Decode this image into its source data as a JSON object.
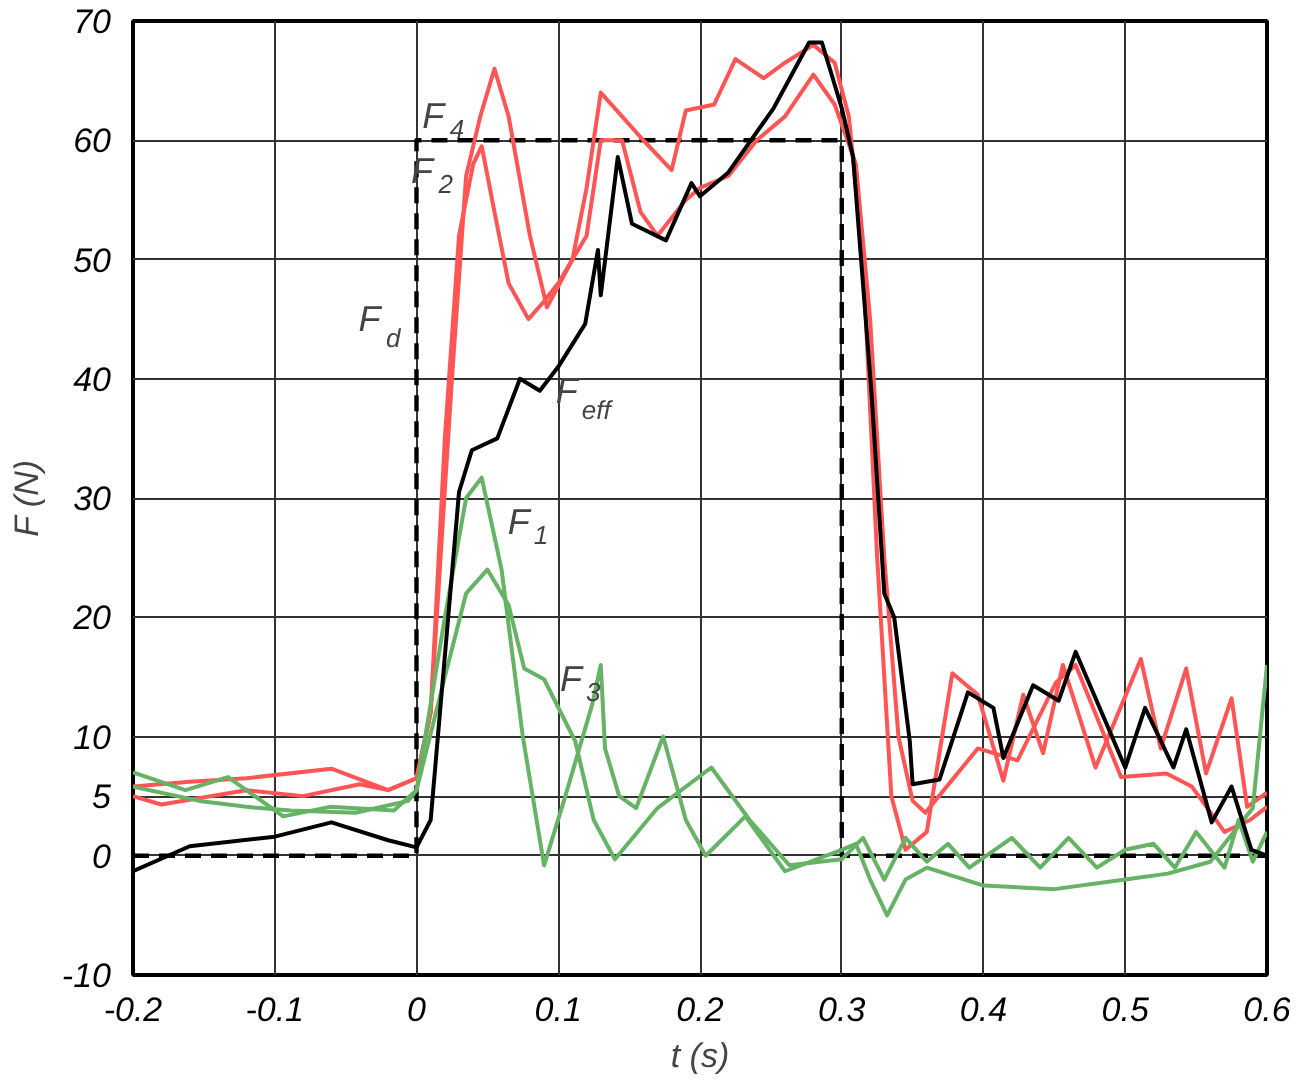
{
  "chart_data": {
    "type": "line",
    "xlabel": "t (s)",
    "ylabel": "F (N)",
    "xlim": [
      -0.2,
      0.6
    ],
    "ylim": [
      -10,
      70
    ],
    "xticks": [
      -0.2,
      -0.1,
      0,
      0.1,
      0.2,
      0.3,
      0.4,
      0.5,
      0.6
    ],
    "yticks": [
      -10,
      0,
      5,
      10,
      20,
      30,
      40,
      50,
      60,
      70
    ],
    "grid": true,
    "marker": "none",
    "series": [
      {
        "color": "#000000",
        "line_style": "dashed",
        "x": [
          -0.2,
          0,
          0,
          0.3,
          0.3,
          0.6
        ],
        "values": [
          0,
          0,
          60,
          60,
          0,
          0
        ]
      },
      {
        "color": "#ff5555",
        "x": [
          -0.2,
          -0.16,
          -0.12,
          -0.06,
          -0.02,
          0,
          0.01,
          0.025,
          0.035,
          0.045,
          0.055,
          0.065,
          0.08,
          0.092,
          0.11,
          0.12,
          0.13,
          0.145,
          0.16,
          0.18,
          0.19,
          0.21,
          0.225,
          0.245,
          0.26,
          0.28,
          0.295,
          0.305,
          0.315,
          0.325,
          0.335,
          0.345,
          0.36,
          0.378,
          0.396,
          0.414,
          0.428,
          0.442,
          0.456,
          0.479,
          0.511,
          0.525,
          0.543,
          0.557,
          0.575,
          0.586,
          0.6
        ],
        "values": [
          5.8,
          6.2,
          6.5,
          7.3,
          5.5,
          6.5,
          12,
          40,
          57,
          62,
          66,
          62,
          52,
          46,
          50,
          56,
          64,
          62,
          60,
          57.5,
          62.5,
          63,
          66.8,
          65.2,
          66.5,
          68,
          66.5,
          62,
          50,
          25,
          5,
          0.5,
          2,
          15.3,
          13.5,
          6.3,
          13.5,
          8.6,
          16,
          7.4,
          16.5,
          9,
          15.7,
          6.9,
          13.2,
          4.1,
          5.3
        ]
      },
      {
        "color": "#ff5555",
        "x": [
          -0.2,
          -0.18,
          -0.12,
          -0.08,
          -0.04,
          -0.02,
          0,
          0.01,
          0.02,
          0.03,
          0.04,
          0.046,
          0.055,
          0.065,
          0.079,
          0.09,
          0.1,
          0.11,
          0.12,
          0.13,
          0.145,
          0.158,
          0.17,
          0.19,
          0.2,
          0.22,
          0.24,
          0.26,
          0.28,
          0.295,
          0.31,
          0.32,
          0.33,
          0.34,
          0.35,
          0.359,
          0.396,
          0.424,
          0.451,
          0.465,
          0.479,
          0.497,
          0.529,
          0.547,
          0.57,
          0.588,
          0.6
        ],
        "values": [
          5,
          4.3,
          5.5,
          5,
          6,
          5.5,
          6.5,
          12,
          35,
          52,
          58,
          59.5,
          54,
          48,
          45,
          46.5,
          48,
          50,
          52,
          60,
          60,
          54,
          52,
          55,
          56,
          57,
          60,
          62,
          65.5,
          63,
          58,
          45,
          25,
          10,
          4.6,
          3.6,
          9,
          8,
          14.5,
          16,
          11.9,
          6.6,
          6.9,
          5.8,
          2,
          3,
          4.1
        ]
      },
      {
        "color": "#66b366",
        "x": [
          -0.2,
          -0.163,
          -0.133,
          -0.094,
          -0.061,
          -0.016,
          0,
          0.02,
          0.035,
          0.046,
          0.06,
          0.075,
          0.09,
          0.105,
          0.124,
          0.13,
          0.133,
          0.143,
          0.155,
          0.174,
          0.19,
          0.204,
          0.232,
          0.26,
          0.3,
          0.31,
          0.32,
          0.332,
          0.345,
          0.36,
          0.4,
          0.45,
          0.5,
          0.53,
          0.56,
          0.59,
          0.6
        ],
        "values": [
          7,
          5.5,
          6.6,
          3.3,
          4.1,
          3.8,
          5.5,
          20,
          30,
          31.7,
          24,
          10,
          -0.8,
          5,
          12.7,
          16,
          9,
          5,
          4,
          10,
          3,
          0,
          3.3,
          -1.3,
          0.5,
          1,
          -2,
          -5,
          -2,
          -1,
          -2.5,
          -2.8,
          -2,
          -1.5,
          -0.5,
          4,
          16
        ]
      },
      {
        "color": "#66b366",
        "x": [
          -0.2,
          -0.153,
          -0.12,
          -0.089,
          -0.043,
          -0.006,
          0,
          0.02,
          0.035,
          0.05,
          0.065,
          0.076,
          0.09,
          0.112,
          0.125,
          0.14,
          0.17,
          0.208,
          0.235,
          0.263,
          0.3,
          0.315,
          0.33,
          0.345,
          0.36,
          0.375,
          0.39,
          0.42,
          0.44,
          0.46,
          0.48,
          0.5,
          0.52,
          0.535,
          0.55,
          0.57,
          0.58,
          0.59,
          0.6
        ],
        "values": [
          5.8,
          4.6,
          4.1,
          3.8,
          3.6,
          4.6,
          5.5,
          15,
          22,
          24,
          21,
          15.7,
          14.8,
          9.6,
          3,
          -0.3,
          4,
          7.4,
          3,
          -0.8,
          -0.3,
          1.5,
          -2,
          1.5,
          -0.5,
          1,
          -1,
          1.5,
          -1,
          1.5,
          -1,
          0.5,
          1,
          -1,
          2,
          -1,
          3,
          -0.5,
          2
        ]
      },
      {
        "color": "#000000",
        "x": [
          -0.2,
          -0.16,
          -0.1,
          -0.06,
          -0.02,
          0,
          0.01,
          0.03,
          0.039,
          0.057,
          0.073,
          0.087,
          0.1,
          0.119,
          0.128,
          0.13,
          0.142,
          0.152,
          0.176,
          0.194,
          0.2,
          0.22,
          0.252,
          0.277,
          0.286,
          0.3,
          0.308,
          0.321,
          0.33,
          0.337,
          0.348,
          0.35,
          0.369,
          0.389,
          0.407,
          0.414,
          0.435,
          0.453,
          0.465,
          0.5,
          0.514,
          0.534,
          0.543,
          0.561,
          0.575,
          0.589,
          0.6
        ],
        "values": [
          -1.3,
          0.8,
          1.6,
          2.8,
          1.3,
          0.7,
          3,
          30.5,
          34,
          35,
          40,
          39,
          41,
          44.6,
          50.8,
          47,
          58.6,
          53,
          51.6,
          56.4,
          55.3,
          57.3,
          62.7,
          68.2,
          68.2,
          62.7,
          58.6,
          38.8,
          22,
          20,
          9.6,
          6,
          6.4,
          13.7,
          12.4,
          8.2,
          14.3,
          13,
          17.1,
          7.4,
          12.4,
          7.4,
          10.6,
          2.8,
          5.8,
          0.5,
          0
        ]
      }
    ],
    "annotations": [
      {
        "text": "F$_{d}$",
        "x": 0,
        "y": 45
      },
      {
        "text": "F$_{eff}$",
        "x": 0.087,
        "y": 39
      },
      {
        "text": "F$_{4}$",
        "x": 0.045,
        "y": 62
      },
      {
        "text": "F$_{2}$",
        "x": 0.037,
        "y": 57.4
      },
      {
        "text": "F$_{1}$",
        "x": 0.053,
        "y": 28
      },
      {
        "text": "F$_{3}$",
        "x": 0.09,
        "y": 14.8
      }
    ]
  }
}
